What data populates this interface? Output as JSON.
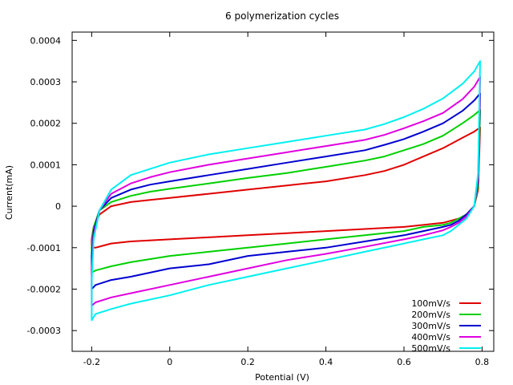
{
  "chart_data": {
    "type": "line",
    "title": "6 polymerization cycles",
    "xlabel": "Potential (V)",
    "ylabel": "Current(mA)",
    "xlim": [
      -0.25,
      0.83
    ],
    "ylim": [
      -0.00035,
      0.00042
    ],
    "x_ticks": [
      -0.2,
      0,
      0.2,
      0.4,
      0.6,
      0.8
    ],
    "x_tick_labels": [
      "-0.2",
      "0",
      "0.2",
      "0.4",
      "0.6",
      "0.8"
    ],
    "y_ticks": [
      -0.0003,
      -0.0002,
      -0.0001,
      0,
      0.0001,
      0.0002,
      0.0003,
      0.0004
    ],
    "y_tick_labels": [
      "-0.0003",
      "-0.0002",
      "-0.0001",
      "0",
      "0.0001",
      "0.0002",
      "0.0003",
      "0.0004"
    ],
    "grid": false,
    "legend_position": "bottom-right",
    "series": [
      {
        "name": "100mV/s",
        "color": "#e00000",
        "forward": {
          "x": [
            -0.2,
            -0.195,
            -0.18,
            -0.15,
            -0.1,
            -0.05,
            0,
            0.1,
            0.2,
            0.3,
            0.4,
            0.5,
            0.55,
            0.6,
            0.65,
            0.7,
            0.75,
            0.78,
            0.795
          ],
          "y": [
            -8e-05,
            -5e-05,
            -2e-05,
            0.0,
            1e-05,
            1.5e-05,
            2e-05,
            3e-05,
            4e-05,
            5e-05,
            6e-05,
            7.5e-05,
            8.5e-05,
            0.0001,
            0.00012,
            0.00014,
            0.000165,
            0.00018,
            0.00019
          ]
        },
        "reverse": {
          "x": [
            0.795,
            0.79,
            0.78,
            0.76,
            0.74,
            0.72,
            0.7,
            0.65,
            0.6,
            0.5,
            0.4,
            0.3,
            0.2,
            0.1,
            0,
            -0.1,
            -0.15,
            -0.19,
            -0.2
          ],
          "y": [
            0.00019,
            4e-05,
            0.0,
            -2e-05,
            -3e-05,
            -3.5e-05,
            -4e-05,
            -4.5e-05,
            -5e-05,
            -5.5e-05,
            -6e-05,
            -6.5e-05,
            -7e-05,
            -7.5e-05,
            -8e-05,
            -8.5e-05,
            -9e-05,
            -0.0001,
            -0.0001
          ]
        }
      },
      {
        "name": "200mV/s",
        "color": "#00d000",
        "forward": {
          "x": [
            -0.2,
            -0.195,
            -0.18,
            -0.15,
            -0.1,
            -0.05,
            0,
            0.1,
            0.2,
            0.3,
            0.4,
            0.5,
            0.55,
            0.6,
            0.65,
            0.7,
            0.75,
            0.78,
            0.795
          ],
          "y": [
            -0.0001,
            -5e-05,
            -1e-05,
            1e-05,
            2.5e-05,
            3.5e-05,
            4.2e-05,
            5.5e-05,
            6.8e-05,
            8e-05,
            9.5e-05,
            0.00011,
            0.00012,
            0.000135,
            0.00015,
            0.00017,
            0.0002,
            0.00022,
            0.000232
          ]
        },
        "reverse": {
          "x": [
            0.795,
            0.79,
            0.78,
            0.76,
            0.74,
            0.72,
            0.7,
            0.65,
            0.6,
            0.5,
            0.4,
            0.3,
            0.2,
            0.1,
            0,
            -0.1,
            -0.15,
            -0.19,
            -0.2
          ],
          "y": [
            0.000232,
            5e-05,
            0.0,
            -2e-05,
            -3e-05,
            -4e-05,
            -4.5e-05,
            -5e-05,
            -6e-05,
            -7e-05,
            -8e-05,
            -9e-05,
            -0.0001,
            -0.00011,
            -0.00012,
            -0.000135,
            -0.000145,
            -0.000155,
            -0.00016
          ]
        }
      },
      {
        "name": "300mV/s",
        "color": "#0000d0",
        "forward": {
          "x": [
            -0.2,
            -0.195,
            -0.18,
            -0.15,
            -0.1,
            -0.05,
            0,
            0.1,
            0.2,
            0.3,
            0.4,
            0.5,
            0.55,
            0.6,
            0.65,
            0.7,
            0.75,
            0.78,
            0.795
          ],
          "y": [
            -0.00012,
            -6e-05,
            -1e-05,
            2e-05,
            4e-05,
            5.2e-05,
            6e-05,
            7.5e-05,
            9e-05,
            0.000105,
            0.00012,
            0.000135,
            0.000148,
            0.000162,
            0.00018,
            0.0002,
            0.00023,
            0.000255,
            0.000272
          ]
        },
        "reverse": {
          "x": [
            0.795,
            0.79,
            0.78,
            0.76,
            0.74,
            0.72,
            0.7,
            0.65,
            0.6,
            0.5,
            0.4,
            0.3,
            0.2,
            0.1,
            0,
            -0.1,
            -0.15,
            -0.19,
            -0.2
          ],
          "y": [
            0.000272,
            6e-05,
            0.0,
            -2e-05,
            -3.5e-05,
            -4.5e-05,
            -5e-05,
            -6e-05,
            -7e-05,
            -8.5e-05,
            -0.0001,
            -0.00011,
            -0.00012,
            -0.00014,
            -0.00015,
            -0.00017,
            -0.000178,
            -0.00019,
            -0.0002
          ]
        }
      },
      {
        "name": "400mV/s",
        "color": "#e000e0",
        "forward": {
          "x": [
            -0.2,
            -0.195,
            -0.18,
            -0.15,
            -0.1,
            -0.05,
            0,
            0.1,
            0.2,
            0.3,
            0.4,
            0.5,
            0.55,
            0.6,
            0.65,
            0.7,
            0.75,
            0.78,
            0.795
          ],
          "y": [
            -0.00015,
            -7e-05,
            -1e-05,
            3e-05,
            5.5e-05,
            7e-05,
            8.2e-05,
            0.0001,
            0.000115,
            0.00013,
            0.000145,
            0.00016,
            0.000172,
            0.000188,
            0.000205,
            0.000225,
            0.000258,
            0.000288,
            0.000312
          ]
        },
        "reverse": {
          "x": [
            0.795,
            0.79,
            0.78,
            0.76,
            0.74,
            0.72,
            0.7,
            0.65,
            0.6,
            0.5,
            0.4,
            0.3,
            0.2,
            0.1,
            0,
            -0.1,
            -0.15,
            -0.19,
            -0.2
          ],
          "y": [
            0.000312,
            7e-05,
            0.0,
            -2.5e-05,
            -4e-05,
            -5e-05,
            -5.8e-05,
            -7e-05,
            -8e-05,
            -9.8e-05,
            -0.000115,
            -0.00013,
            -0.00015,
            -0.00017,
            -0.00019,
            -0.00021,
            -0.00022,
            -0.000232,
            -0.00024
          ]
        }
      },
      {
        "name": "500mV/s",
        "color": "#00f0f0",
        "forward": {
          "x": [
            -0.2,
            -0.195,
            -0.18,
            -0.15,
            -0.1,
            -0.05,
            0,
            0.1,
            0.2,
            0.3,
            0.4,
            0.5,
            0.55,
            0.6,
            0.65,
            0.7,
            0.75,
            0.78,
            0.795
          ],
          "y": [
            -0.00018,
            -8e-05,
            -1e-05,
            4e-05,
            7.5e-05,
            9e-05,
            0.000105,
            0.000125,
            0.00014,
            0.000155,
            0.00017,
            0.000185,
            0.000198,
            0.000215,
            0.000235,
            0.00026,
            0.000295,
            0.000325,
            0.00035
          ]
        },
        "reverse": {
          "x": [
            0.795,
            0.79,
            0.78,
            0.76,
            0.74,
            0.72,
            0.7,
            0.65,
            0.6,
            0.5,
            0.4,
            0.3,
            0.2,
            0.1,
            0,
            -0.1,
            -0.15,
            -0.19,
            -0.2
          ],
          "y": [
            0.00035,
            8e-05,
            0.0,
            -3e-05,
            -4.5e-05,
            -6e-05,
            -7e-05,
            -8e-05,
            -9e-05,
            -0.00011,
            -0.00013,
            -0.00015,
            -0.00017,
            -0.00019,
            -0.000215,
            -0.000235,
            -0.000248,
            -0.00026,
            -0.000275
          ]
        }
      }
    ]
  }
}
